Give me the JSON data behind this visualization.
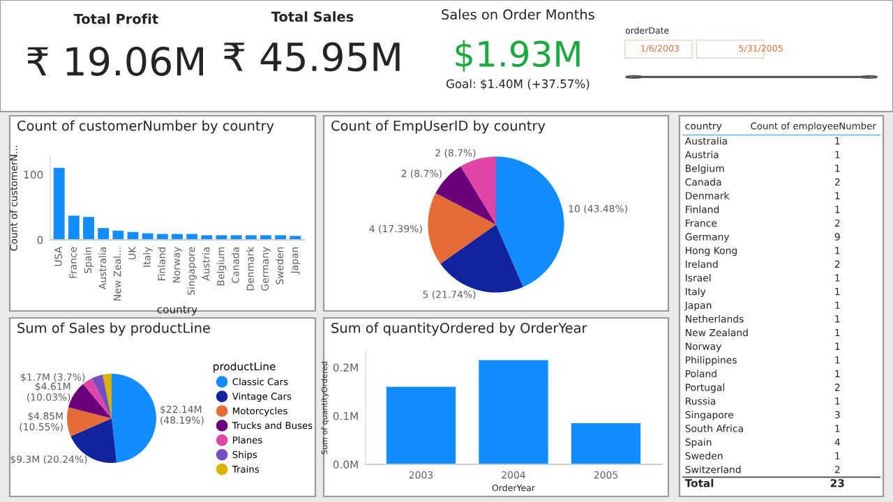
{
  "chart_data": [
    {
      "type": "other",
      "annotations": [
        "Total Profit",
        "₹ 19.06M",
        "Total Sales",
        "₹ 45.95M",
        "Sales on Order Months",
        "$1.93M",
        "Goal: $1.40M (+37.57%)",
        "orderDate",
        "1/6/2003",
        "5/31/2005"
      ]
    },
    {
      "type": "bar",
      "title": "Count of customerNumber by country",
      "xlabel": "country",
      "ylabel": "Count of customerN...",
      "color": "#118dff",
      "categories": [
        "USA",
        "France",
        "Spain",
        "Australia",
        "New Zeal...",
        "UK",
        "Italy",
        "Finland",
        "Norway",
        "Singapore",
        "Austria",
        "Belgium",
        "Canada",
        "Denmark",
        "Germany",
        "Sweden",
        "Japan"
      ],
      "values": [
        110,
        37,
        35,
        18,
        14,
        12,
        10,
        9,
        9,
        9,
        7,
        7,
        7,
        7,
        7,
        7,
        6
      ],
      "ylim": [
        0,
        128
      ],
      "yticks": [
        0,
        100
      ],
      "grid": false
    },
    {
      "type": "pie",
      "title": "Count of EmpUserID by country",
      "categories": [
        null,
        null,
        null,
        null,
        null
      ],
      "values": [
        10,
        5,
        4,
        2,
        2
      ],
      "colors": [
        "#118dff",
        "#12239e",
        "#e66c37",
        "#6b007b",
        "#e044a7"
      ],
      "value_labels": [
        "10 (43.48%)",
        "5 (21.74%)",
        "4 (17.39%)",
        "2 (8.7%)",
        "2 (8.7%)"
      ]
    },
    {
      "type": "pie",
      "title": "Sum of Sales by productLine",
      "legend_title": "productLine",
      "legend": "right",
      "categories": [
        "Classic Cars",
        "Vintage Cars",
        "Motorcycles",
        "Trucks and Buses",
        "Planes",
        "Ships",
        "Trains"
      ],
      "values": [
        48.19,
        20.24,
        10.55,
        10.03,
        3.7,
        4.09,
        3.2
      ],
      "colors": [
        "#118dff",
        "#12239e",
        "#e66c37",
        "#6b007b",
        "#e044a7",
        "#744ec2",
        "#d9b300"
      ],
      "value_labels": [
        "$22.14M\n(48.19%)",
        "$9.3M (20.24%)",
        "$4.85M\n(10.55%)",
        "$4.61M\n(10.03%)",
        "$1.7M (3.7%)",
        null,
        null
      ]
    },
    {
      "type": "bar",
      "title": "Sum of quantityOrdered by OrderYear",
      "xlabel": "OrderYear",
      "ylabel": "Sum of quantityOrdered",
      "color": "#118dff",
      "categories": [
        "2003",
        "2004",
        "2005"
      ],
      "values": [
        0.16,
        0.215,
        0.085
      ],
      "ylim": [
        0,
        0.233
      ],
      "yticks": [
        {
          "value": 0,
          "label": "0.0M"
        },
        {
          "value": 0.1,
          "label": "0.1M"
        },
        {
          "value": 0.2,
          "label": "0.2M"
        }
      ],
      "grid": false
    },
    {
      "type": "heatmap",
      "ylabel": "country",
      "data_labels": true,
      "categories": [
        "Count of employeeNumber"
      ],
      "y_categories": [
        "Australia",
        "Austria",
        "Belgium",
        "Canada",
        "Denmark",
        "Finland",
        "France",
        "Germany",
        "Hong Kong",
        "Ireland",
        "Israel",
        "Italy",
        "Japan",
        "Netherlands",
        "New Zealand",
        "Norway",
        "Philippines",
        "Poland",
        "Portugal",
        "Russia",
        "Singapore",
        "South Africa",
        "Spain",
        "Sweden",
        "Switzerland",
        "Total"
      ],
      "cells": [
        [
          1
        ],
        [
          1
        ],
        [
          1
        ],
        [
          2
        ],
        [
          1
        ],
        [
          1
        ],
        [
          2
        ],
        [
          9
        ],
        [
          1
        ],
        [
          2
        ],
        [
          1
        ],
        [
          1
        ],
        [
          1
        ],
        [
          1
        ],
        [
          1
        ],
        [
          1
        ],
        [
          1
        ],
        [
          1
        ],
        [
          2
        ],
        [
          1
        ],
        [
          3
        ],
        [
          1
        ],
        [
          4
        ],
        [
          1
        ],
        [
          2
        ],
        [
          23
        ]
      ]
    }
  ]
}
